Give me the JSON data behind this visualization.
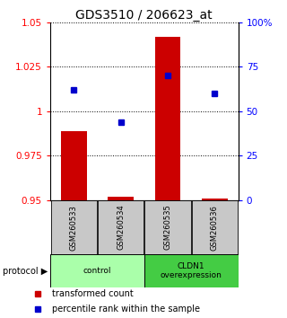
{
  "title": "GDS3510 / 206623_at",
  "samples": [
    "GSM260533",
    "GSM260534",
    "GSM260535",
    "GSM260536"
  ],
  "transformed_counts": [
    0.989,
    0.952,
    1.042,
    0.951
  ],
  "percentile_ranks": [
    62,
    44,
    70,
    60
  ],
  "ylim_left": [
    0.95,
    1.05
  ],
  "ylim_right": [
    0,
    100
  ],
  "yticks_left": [
    0.95,
    0.975,
    1.0,
    1.025,
    1.05
  ],
  "ytick_labels_left": [
    "0.95",
    "0.975",
    "1",
    "1.025",
    "1.05"
  ],
  "yticks_right": [
    0,
    25,
    50,
    75,
    100
  ],
  "ytick_labels_right": [
    "0",
    "25",
    "50",
    "75",
    "100%"
  ],
  "bar_color": "#cc0000",
  "dot_color": "#0000cc",
  "bar_width": 0.55,
  "groups": [
    {
      "label": "control",
      "samples": [
        0,
        1
      ],
      "color": "#aaffaa"
    },
    {
      "label": "CLDN1\noverexpression",
      "samples": [
        2,
        3
      ],
      "color": "#44cc44"
    }
  ],
  "protocol_label": "protocol",
  "legend_bar_label": "transformed count",
  "legend_dot_label": "percentile rank within the sample",
  "sample_box_color": "#c8c8c8",
  "title_fontsize": 10,
  "tick_fontsize": 7.5,
  "label_fontsize": 7
}
